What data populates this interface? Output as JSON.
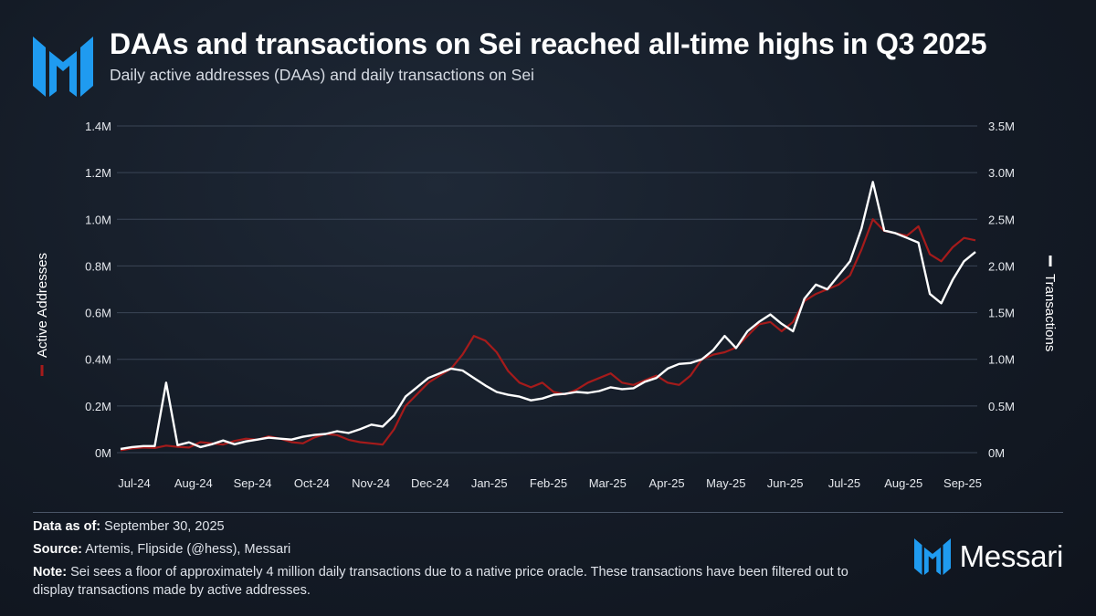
{
  "header": {
    "title": "DAAs and transactions on Sei reached all-time highs in Q3 2025",
    "subtitle": "Daily active addresses (DAAs) and daily transactions on Sei"
  },
  "footer": {
    "data_as_of_label": "Data as of:",
    "data_as_of_value": "September 30, 2025",
    "source_label": "Source:",
    "source_value": "Artemis, Flipside (@hess), Messari",
    "note_label": "Note:",
    "note_value": "Sei sees a floor of approximately 4 million daily transactions due to a native price oracle. These transactions have been filtered out to display transactions made by active addresses.",
    "brand": "Messari"
  },
  "colors": {
    "active_addresses": "#a51b1b",
    "transactions": "#ffffff",
    "brand_blue": "#1f9bf0",
    "grid": "#3a4556"
  },
  "chart_data": {
    "type": "line",
    "title": "",
    "xlabel": "",
    "x_ticks": [
      "Jul-24",
      "Aug-24",
      "Sep-24",
      "Oct-24",
      "Nov-24",
      "Dec-24",
      "Jan-25",
      "Feb-25",
      "Mar-25",
      "Apr-25",
      "May-25",
      "Jun-25",
      "Jul-25",
      "Aug-25",
      "Sep-25"
    ],
    "x_unit": "weeks from start",
    "y_left": {
      "label": "Active Addresses",
      "ticks": [
        "0M",
        "0.2M",
        "0.4M",
        "0.6M",
        "0.8M",
        "1.0M",
        "1.2M",
        "1.4M"
      ],
      "range": [
        0,
        1400000
      ]
    },
    "y_right": {
      "label": "Transactions",
      "ticks": [
        "0M",
        "0.5M",
        "1.0M",
        "1.5M",
        "2.0M",
        "2.5M",
        "3.0M",
        "3.5M"
      ],
      "range": [
        0,
        3500000
      ]
    },
    "grid": true,
    "legend": "axis labels",
    "series": [
      {
        "name": "Active Addresses",
        "axis": "left",
        "values": [
          10000,
          18000,
          22000,
          20000,
          30000,
          25000,
          22000,
          45000,
          40000,
          35000,
          50000,
          60000,
          55000,
          70000,
          60000,
          45000,
          40000,
          65000,
          80000,
          75000,
          55000,
          45000,
          40000,
          35000,
          100000,
          200000,
          250000,
          300000,
          330000,
          360000,
          420000,
          500000,
          480000,
          430000,
          350000,
          300000,
          280000,
          300000,
          260000,
          250000,
          270000,
          300000,
          320000,
          340000,
          300000,
          290000,
          310000,
          330000,
          300000,
          290000,
          330000,
          400000,
          420000,
          430000,
          450000,
          500000,
          550000,
          560000,
          520000,
          560000,
          650000,
          680000,
          700000,
          720000,
          760000,
          870000,
          1000000,
          950000,
          940000,
          930000,
          970000,
          850000,
          820000,
          880000,
          920000,
          910000
        ]
      },
      {
        "name": "Transactions",
        "axis": "right",
        "values": [
          40000,
          60000,
          70000,
          70000,
          750000,
          80000,
          110000,
          60000,
          90000,
          130000,
          90000,
          120000,
          140000,
          160000,
          150000,
          140000,
          170000,
          190000,
          200000,
          230000,
          210000,
          250000,
          300000,
          280000,
          400000,
          600000,
          700000,
          800000,
          850000,
          900000,
          880000,
          800000,
          720000,
          650000,
          620000,
          600000,
          560000,
          580000,
          620000,
          630000,
          650000,
          640000,
          660000,
          700000,
          680000,
          690000,
          760000,
          800000,
          900000,
          950000,
          960000,
          1000000,
          1100000,
          1250000,
          1120000,
          1300000,
          1400000,
          1480000,
          1380000,
          1300000,
          1650000,
          1800000,
          1750000,
          1900000,
          2050000,
          2400000,
          2900000,
          2380000,
          2350000,
          2300000,
          2250000,
          1700000,
          1600000,
          1850000,
          2050000,
          2150000
        ]
      }
    ]
  }
}
